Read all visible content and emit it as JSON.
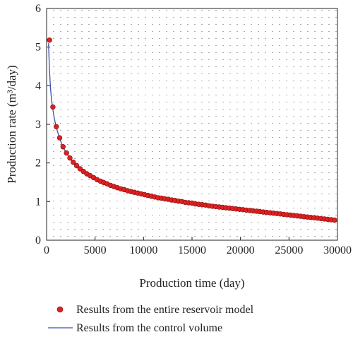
{
  "chart_data": {
    "type": "scatter",
    "xlabel": "Production time (day)",
    "ylabel": "Production rate (m³/day)",
    "xlim": [
      0,
      30000
    ],
    "ylim": [
      0,
      6
    ],
    "xticks": [
      0,
      5000,
      10000,
      15000,
      20000,
      25000,
      30000
    ],
    "yticks": [
      0,
      1,
      2,
      3,
      4,
      5,
      6
    ],
    "grid": "dotted",
    "legend_position": "bottom",
    "colors": {
      "points": "#e0201f",
      "point_edge": "#7a1010",
      "line": "#3b4fb0",
      "grid": "#555555"
    },
    "series": [
      {
        "name": "Results from the entire reservoir model",
        "kind": "points",
        "x": [
          300,
          650,
          1000,
          1350,
          1700,
          2050,
          2400,
          2750,
          3100,
          3450,
          3800,
          4150,
          4500,
          4850,
          5200,
          5550,
          5900,
          6250,
          6600,
          6950,
          7300,
          7650,
          8000,
          8350,
          8700,
          9050,
          9400,
          9750,
          10100,
          10450,
          10800,
          11150,
          11500,
          11850,
          12200,
          12550,
          12900,
          13250,
          13600,
          13950,
          14300,
          14650,
          15000,
          15350,
          15700,
          16050,
          16400,
          16750,
          17100,
          17450,
          17800,
          18150,
          18500,
          18850,
          19200,
          19550,
          19900,
          20250,
          20600,
          20950,
          21300,
          21650,
          22000,
          22350,
          22700,
          23050,
          23400,
          23750,
          24100,
          24450,
          24800,
          25150,
          25500,
          25850,
          26200,
          26550,
          26900,
          27250,
          27600,
          27950,
          28300,
          28650,
          29000,
          29350,
          29700
        ],
        "y": [
          5.18,
          3.45,
          2.94,
          2.65,
          2.42,
          2.26,
          2.13,
          2.02,
          1.93,
          1.85,
          1.78,
          1.72,
          1.67,
          1.62,
          1.57,
          1.53,
          1.49,
          1.46,
          1.42,
          1.39,
          1.36,
          1.33,
          1.31,
          1.28,
          1.26,
          1.24,
          1.22,
          1.2,
          1.18,
          1.16,
          1.14,
          1.12,
          1.1,
          1.09,
          1.07,
          1.06,
          1.04,
          1.03,
          1.01,
          1.0,
          0.98,
          0.97,
          0.96,
          0.94,
          0.93,
          0.92,
          0.91,
          0.89,
          0.88,
          0.87,
          0.86,
          0.85,
          0.84,
          0.83,
          0.82,
          0.81,
          0.8,
          0.79,
          0.78,
          0.77,
          0.76,
          0.75,
          0.74,
          0.73,
          0.72,
          0.71,
          0.7,
          0.69,
          0.68,
          0.67,
          0.66,
          0.65,
          0.64,
          0.63,
          0.62,
          0.61,
          0.6,
          0.59,
          0.58,
          0.57,
          0.56,
          0.55,
          0.54,
          0.53,
          0.52
        ]
      },
      {
        "name": "Results from the control volume",
        "kind": "line",
        "x": [
          200,
          300,
          400,
          500,
          650,
          800,
          1000,
          1350,
          1700,
          2050,
          2400,
          2750,
          3100,
          3450,
          3800,
          4500,
          5200,
          5900,
          6600,
          7300,
          8000,
          8700,
          9400,
          10100,
          10800,
          11500,
          12200,
          12900,
          13600,
          14300,
          15000,
          16000,
          17000,
          18000,
          19000,
          20000,
          21000,
          22000,
          23000,
          24000,
          25000,
          26000,
          27000,
          28000,
          29000,
          30000
        ],
        "y": [
          5.1,
          4.4,
          3.95,
          3.65,
          3.38,
          3.15,
          2.92,
          2.63,
          2.41,
          2.25,
          2.12,
          2.01,
          1.92,
          1.84,
          1.77,
          1.66,
          1.56,
          1.48,
          1.41,
          1.35,
          1.3,
          1.25,
          1.21,
          1.17,
          1.13,
          1.09,
          1.06,
          1.03,
          1.0,
          0.97,
          0.95,
          0.92,
          0.88,
          0.85,
          0.82,
          0.79,
          0.76,
          0.73,
          0.71,
          0.68,
          0.65,
          0.62,
          0.6,
          0.57,
          0.55,
          0.52
        ]
      }
    ]
  }
}
